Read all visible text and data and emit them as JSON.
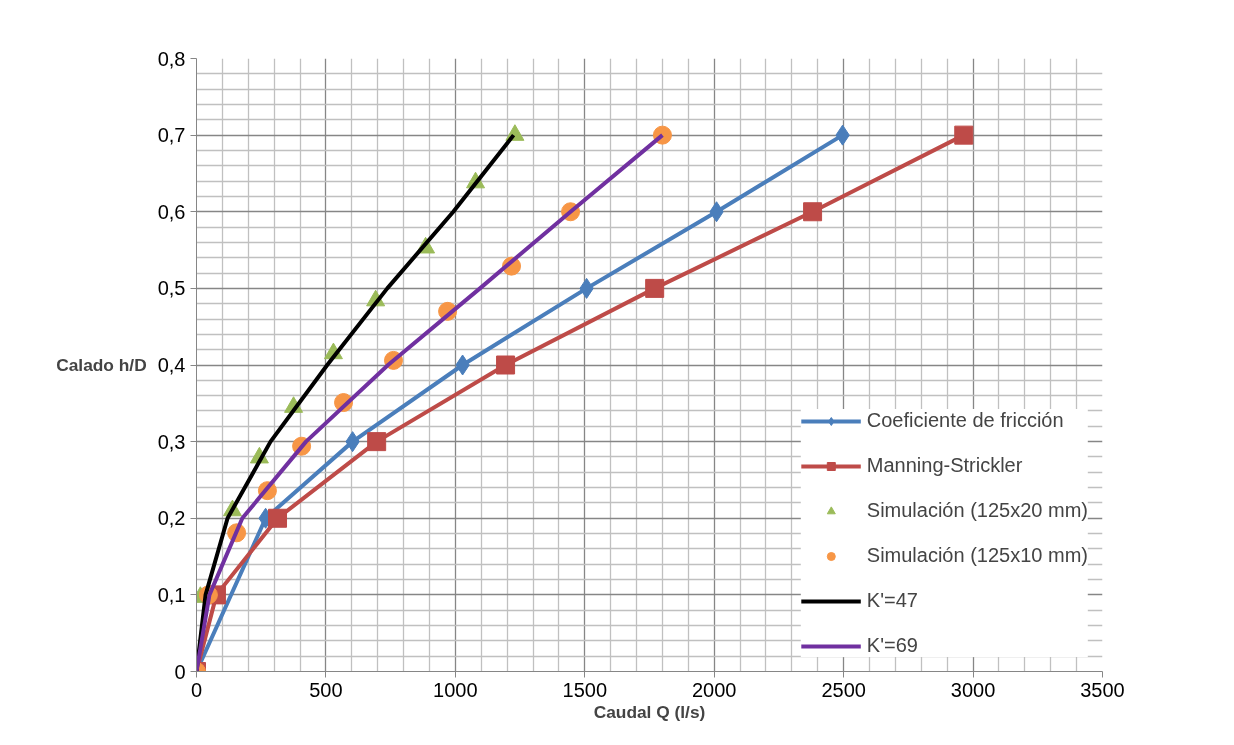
{
  "chart_data": {
    "type": "line",
    "xlabel": "Caudal Q (l/s)",
    "ylabel": "Calado h/D",
    "xlim": [
      0,
      3500
    ],
    "xticks": [
      0,
      500,
      1000,
      1500,
      2000,
      2500,
      3000,
      3500
    ],
    "ylim": [
      0,
      0.8
    ],
    "yticks": [
      0,
      {
        "value": 0.1,
        "label": "0,1"
      },
      {
        "value": 0.2,
        "label": "0,2"
      },
      {
        "value": 0.3,
        "label": "0,3"
      },
      {
        "value": 0.4,
        "label": "0,4"
      },
      {
        "value": 0.5,
        "label": "0,5"
      },
      {
        "value": 0.6,
        "label": "0,6"
      },
      {
        "value": 0.7,
        "label": "0,7"
      },
      {
        "value": 0.8,
        "label": "0,8"
      }
    ],
    "grid": true,
    "legend": "bottom right",
    "series": [
      {
        "name": "Coeficiente de fricción",
        "marker": "diamond",
        "color": "#4a7ebb",
        "x": [
          0,
          267,
          603,
          1028,
          1507,
          2009,
          2496
        ],
        "values": [
          0,
          0.2,
          0.3,
          0.4,
          0.5,
          0.6,
          0.7
        ]
      },
      {
        "name": "Manning-Strickler",
        "marker": "square",
        "color": "#be4b48",
        "x": [
          0,
          77,
          313,
          696,
          1194,
          1770,
          2380,
          2964
        ],
        "values": [
          0,
          0.1,
          0.2,
          0.3,
          0.4,
          0.5,
          0.6,
          0.7
        ]
      },
      {
        "name": "Simulación (125x20 mm)",
        "type": "scatter",
        "marker": "triangle",
        "color": "#9bbb59",
        "x": [
          15,
          139,
          243,
          375,
          529,
          692,
          885,
          1078,
          1230
        ],
        "values": [
          0.097,
          0.21,
          0.279,
          0.345,
          0.415,
          0.484,
          0.553,
          0.638,
          0.7
        ]
      },
      {
        "name": "Simulación (125x10 mm)",
        "type": "scatter",
        "marker": "circle",
        "color": "#f79646",
        "x": [
          0,
          46,
          155,
          274,
          406,
          568,
          761,
          970,
          1217,
          1445,
          1800
        ],
        "values": [
          0,
          0.1,
          0.181,
          0.236,
          0.294,
          0.351,
          0.406,
          0.47,
          0.529,
          0.6,
          0.7
        ]
      },
      {
        "name": "K'=47",
        "marker": "none",
        "color": "#000000",
        "x": [
          0,
          35,
          120,
          286,
          505,
          737,
          992,
          1225
        ],
        "values": [
          0,
          0.1,
          0.2,
          0.3,
          0.4,
          0.5,
          0.6,
          0.7
        ]
      },
      {
        "name": "K'=69",
        "marker": "none",
        "color": "#7030a0",
        "x": [
          0,
          50,
          177,
          423,
          740,
          1095,
          1445,
          1800
        ],
        "values": [
          0,
          0.1,
          0.2,
          0.3,
          0.4,
          0.5,
          0.6,
          0.7
        ]
      }
    ]
  }
}
